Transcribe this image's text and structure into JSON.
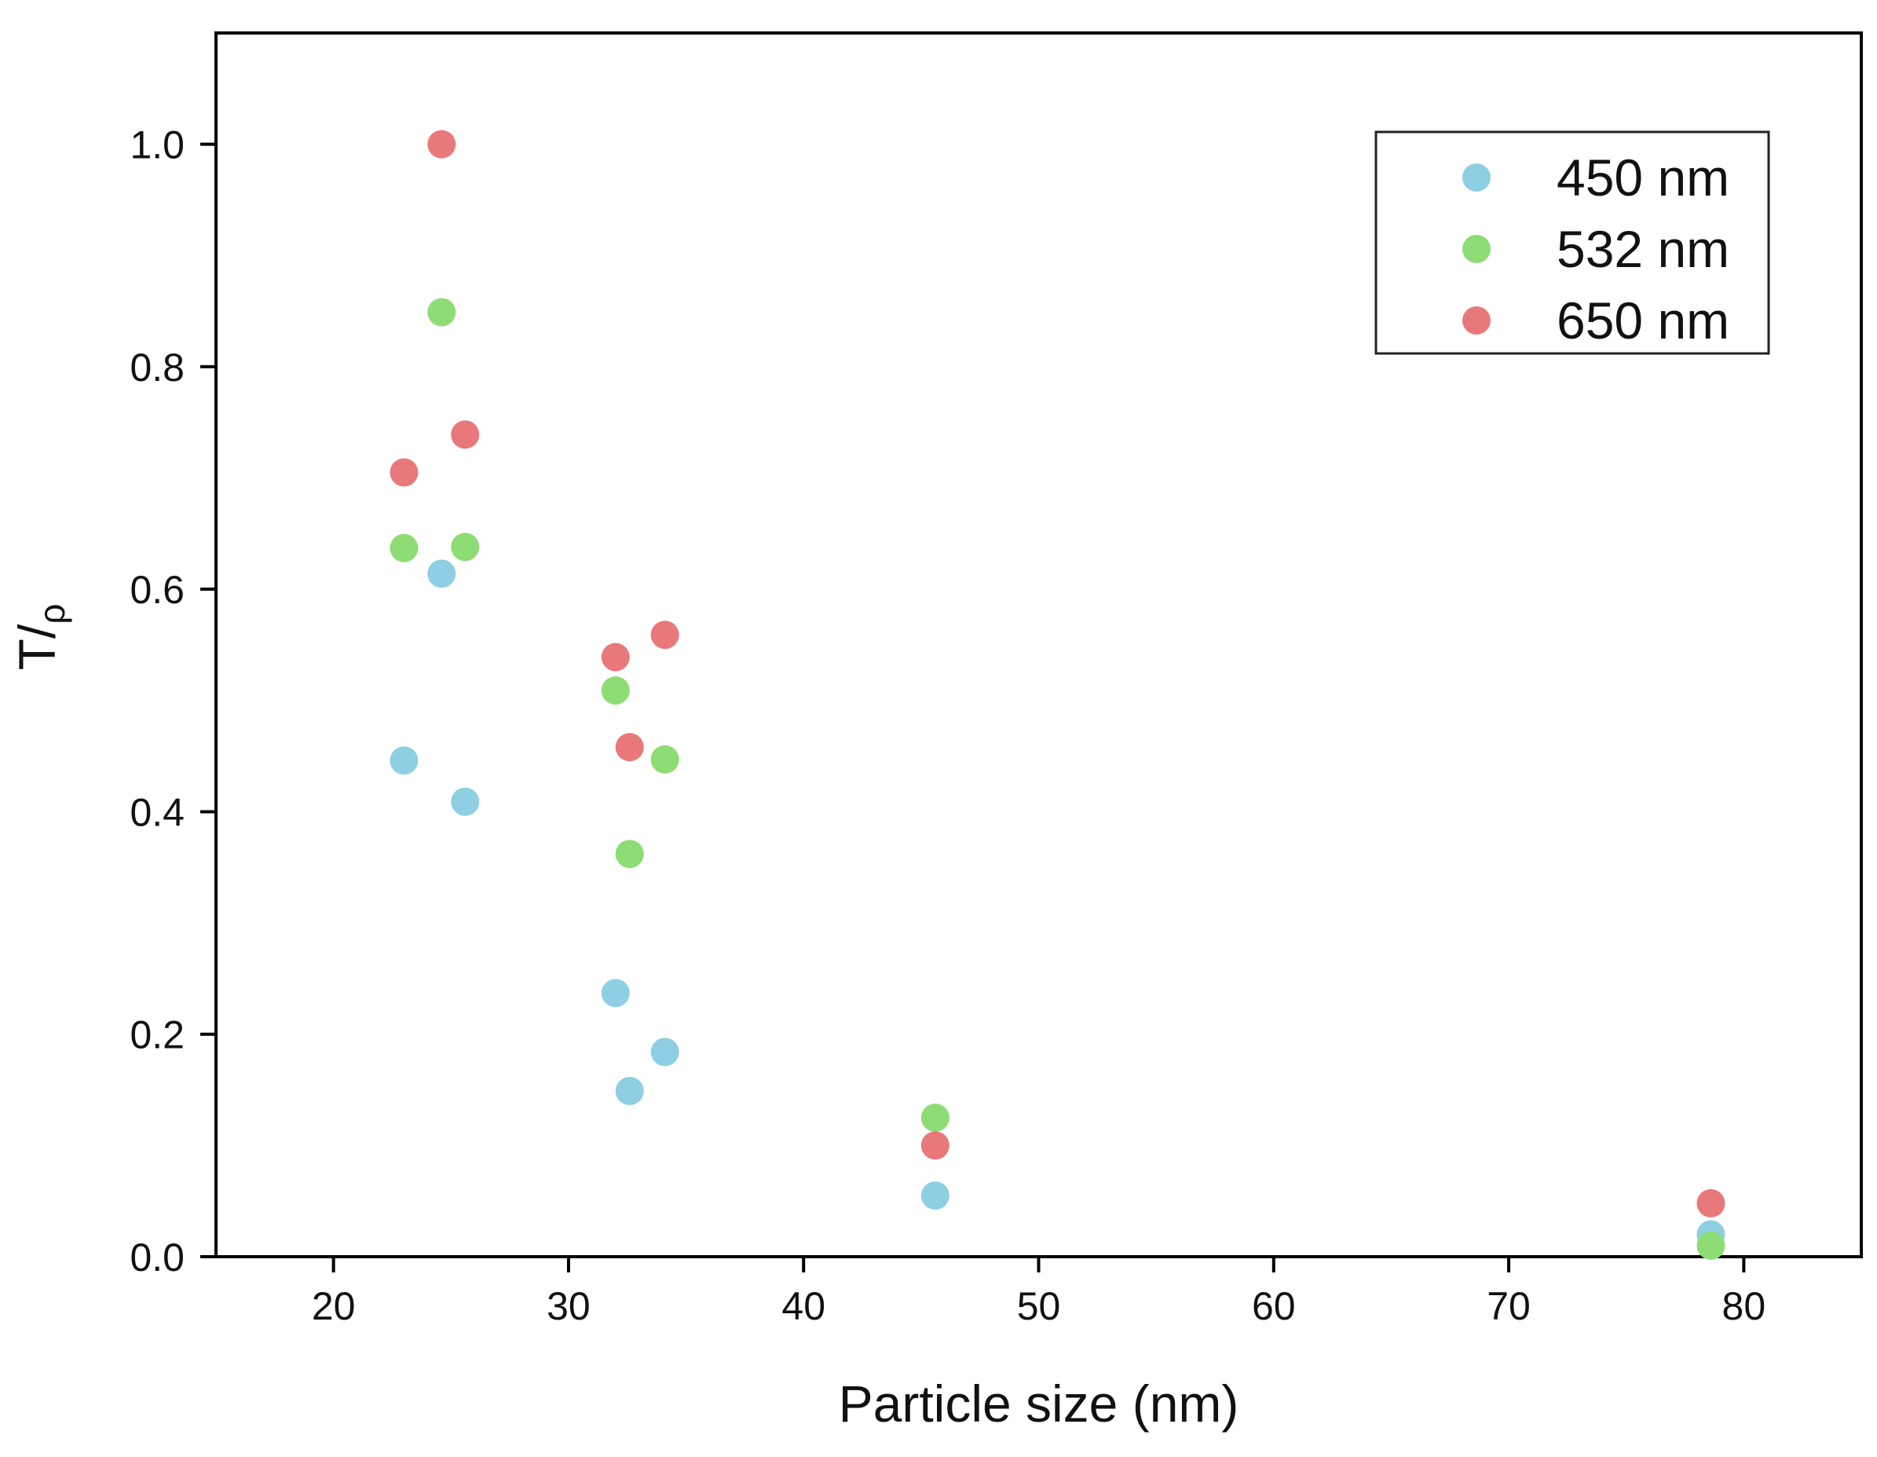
{
  "chart_data": {
    "type": "scatter",
    "xlabel": "Particle size (nm)",
    "ylabel_main": "T/",
    "ylabel_sub": "ρ",
    "xlim": [
      15,
      85
    ],
    "ylim": [
      0,
      1.1
    ],
    "xticks": [
      20,
      30,
      40,
      50,
      60,
      70,
      80
    ],
    "xtick_labels": [
      "20",
      "30",
      "40",
      "50",
      "60",
      "70",
      "80"
    ],
    "yticks": [
      0.0,
      0.2,
      0.4,
      0.6,
      0.8,
      1.0
    ],
    "ytick_labels": [
      "0.0",
      "0.2",
      "0.4",
      "0.6",
      "0.8",
      "1.0"
    ],
    "grid": false,
    "legend_position": "top-right",
    "series": [
      {
        "name": "450 nm",
        "color": "#8ecfe3",
        "points": [
          {
            "x": 23.0,
            "y": 0.446
          },
          {
            "x": 24.6,
            "y": 0.614
          },
          {
            "x": 25.6,
            "y": 0.409
          },
          {
            "x": 32.0,
            "y": 0.237
          },
          {
            "x": 32.6,
            "y": 0.149
          },
          {
            "x": 34.1,
            "y": 0.184
          },
          {
            "x": 45.6,
            "y": 0.055
          },
          {
            "x": 78.6,
            "y": 0.02
          }
        ]
      },
      {
        "name": "532 nm",
        "color": "#8edc74",
        "points": [
          {
            "x": 23.0,
            "y": 0.637
          },
          {
            "x": 24.6,
            "y": 0.849
          },
          {
            "x": 25.6,
            "y": 0.638
          },
          {
            "x": 32.0,
            "y": 0.509
          },
          {
            "x": 32.6,
            "y": 0.362
          },
          {
            "x": 34.1,
            "y": 0.447
          },
          {
            "x": 45.6,
            "y": 0.125
          },
          {
            "x": 78.6,
            "y": 0.01
          }
        ]
      },
      {
        "name": "650 nm",
        "color": "#e9787b",
        "points": [
          {
            "x": 23.0,
            "y": 0.705
          },
          {
            "x": 24.6,
            "y": 1.0
          },
          {
            "x": 25.6,
            "y": 0.739
          },
          {
            "x": 32.0,
            "y": 0.539
          },
          {
            "x": 32.6,
            "y": 0.458
          },
          {
            "x": 34.1,
            "y": 0.559
          },
          {
            "x": 45.6,
            "y": 0.1
          },
          {
            "x": 78.6,
            "y": 0.048
          }
        ]
      }
    ]
  }
}
